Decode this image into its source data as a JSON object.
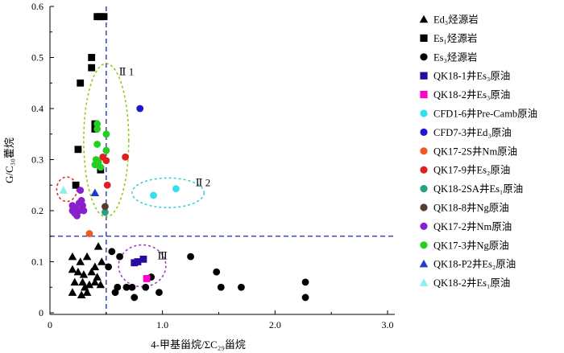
{
  "chart_data": {
    "type": "scatter",
    "xlabel": "4-甲基甾烷/ΣC₂₉甾烷",
    "ylabel": "G/C₃₀藿烷",
    "xlim": [
      0,
      3.0
    ],
    "ylim": [
      0,
      0.6
    ],
    "x_ticks": [
      "0",
      "1.0",
      "2.0",
      "3.0"
    ],
    "y_ticks": [
      "0",
      "0.1",
      "0.2",
      "0.3",
      "0.4",
      "0.5",
      "0.6"
    ],
    "reference_lines": {
      "x": 0.5,
      "y": 0.15
    },
    "legend_position": "right",
    "annotations": [
      {
        "label": "Ⅱ 1",
        "x": 0.68,
        "y": 0.465
      },
      {
        "label": "Ⅱ 2",
        "x": 1.36,
        "y": 0.248
      },
      {
        "label": "Ⅲ",
        "x": 1.0,
        "y": 0.105
      }
    ],
    "ellipses": [
      {
        "name": "II1",
        "cx": 0.5,
        "cy": 0.338,
        "rx": 0.2,
        "ry": 0.15,
        "color": "#8ccc1a"
      },
      {
        "name": "II2",
        "cx": 1.05,
        "cy": 0.235,
        "rx": 0.32,
        "ry": 0.029,
        "color": "#3cd2d2"
      },
      {
        "name": "III",
        "cx": 0.82,
        "cy": 0.092,
        "rx": 0.21,
        "ry": 0.041,
        "color": "#a83cc8"
      },
      {
        "name": "left",
        "cx": 0.15,
        "cy": 0.242,
        "rx": 0.09,
        "ry": 0.024,
        "color": "#d83030"
      }
    ],
    "series": [
      {
        "name": "Ed₃烃源岩",
        "marker": "triangle",
        "color": "#000000",
        "points": [
          [
            0.2,
            0.11
          ],
          [
            0.27,
            0.1
          ],
          [
            0.33,
            0.11
          ],
          [
            0.4,
            0.09
          ],
          [
            0.43,
            0.13
          ],
          [
            0.46,
            0.1
          ],
          [
            0.2,
            0.085
          ],
          [
            0.3,
            0.075
          ],
          [
            0.37,
            0.08
          ],
          [
            0.42,
            0.07
          ],
          [
            0.22,
            0.06
          ],
          [
            0.29,
            0.06
          ],
          [
            0.35,
            0.055
          ],
          [
            0.4,
            0.06
          ],
          [
            0.45,
            0.055
          ],
          [
            0.2,
            0.04
          ],
          [
            0.28,
            0.035
          ],
          [
            0.33,
            0.04
          ],
          [
            0.25,
            0.08
          ],
          [
            0.31,
            0.05
          ]
        ]
      },
      {
        "name": "Es₁烃源岩",
        "marker": "square",
        "color": "#000000",
        "points": [
          [
            0.42,
            0.58
          ],
          [
            0.45,
            0.58
          ],
          [
            0.48,
            0.58
          ],
          [
            0.37,
            0.5
          ],
          [
            0.37,
            0.48
          ],
          [
            0.27,
            0.45
          ],
          [
            0.4,
            0.37
          ],
          [
            0.4,
            0.36
          ],
          [
            0.25,
            0.32
          ],
          [
            0.45,
            0.28
          ],
          [
            0.23,
            0.25
          ]
        ]
      },
      {
        "name": "Es₃烃源岩",
        "marker": "circle",
        "color": "#000000",
        "points": [
          [
            0.55,
            0.12
          ],
          [
            0.62,
            0.11
          ],
          [
            0.52,
            0.09
          ],
          [
            0.6,
            0.05
          ],
          [
            0.58,
            0.04
          ],
          [
            0.68,
            0.05
          ],
          [
            0.73,
            0.05
          ],
          [
            0.75,
            0.03
          ],
          [
            0.85,
            0.05
          ],
          [
            0.9,
            0.07
          ],
          [
            0.97,
            0.04
          ],
          [
            1.25,
            0.11
          ],
          [
            1.48,
            0.08
          ],
          [
            1.52,
            0.05
          ],
          [
            1.7,
            0.05
          ],
          [
            2.27,
            0.06
          ],
          [
            2.27,
            0.03
          ]
        ]
      },
      {
        "name": "QK18-1井Es₃原油",
        "marker": "square",
        "color": "#2a0aa0",
        "points": [
          [
            0.83,
            0.105
          ],
          [
            0.78,
            0.1
          ],
          [
            0.75,
            0.098
          ]
        ]
      },
      {
        "name": "QK18-2井Es₃原油",
        "marker": "square",
        "color": "#ff00cc",
        "points": [
          [
            0.86,
            0.067
          ]
        ]
      },
      {
        "name": "CFD1-6井Pre-Camb原油",
        "marker": "circle",
        "color": "#33e0ee",
        "points": [
          [
            0.92,
            0.23
          ],
          [
            1.12,
            0.243
          ]
        ]
      },
      {
        "name": "CFD7-3井Ed₃原油",
        "marker": "circle",
        "color": "#1a1acc",
        "points": [
          [
            0.8,
            0.4
          ]
        ]
      },
      {
        "name": "QK17-2S井Nm原油",
        "marker": "circle",
        "color": "#ee5a20",
        "points": [
          [
            0.35,
            0.155
          ]
        ]
      },
      {
        "name": "QK17-9井Es₂原油",
        "marker": "circle",
        "color": "#e02020",
        "points": [
          [
            0.47,
            0.305
          ],
          [
            0.5,
            0.298
          ],
          [
            0.67,
            0.305
          ],
          [
            0.51,
            0.25
          ]
        ]
      },
      {
        "name": "QK18-2SA井Es₁原油",
        "marker": "circle",
        "color": "#26a080",
        "points": [
          [
            0.49,
            0.197
          ]
        ]
      },
      {
        "name": "QK18-8井Ng原油",
        "marker": "circle",
        "color": "#5a3a2a",
        "points": [
          [
            0.49,
            0.208
          ]
        ]
      },
      {
        "name": "QK17-2井Nm原油",
        "marker": "circle",
        "color": "#8a20cc",
        "points": [
          [
            0.2,
            0.21
          ],
          [
            0.23,
            0.205
          ],
          [
            0.26,
            0.2
          ],
          [
            0.29,
            0.21
          ],
          [
            0.22,
            0.195
          ],
          [
            0.26,
            0.215
          ],
          [
            0.3,
            0.2
          ],
          [
            0.2,
            0.2
          ],
          [
            0.24,
            0.19
          ],
          [
            0.28,
            0.22
          ],
          [
            0.27,
            0.24
          ]
        ]
      },
      {
        "name": "QK17-3井Ng原油",
        "marker": "circle",
        "color": "#22d022",
        "points": [
          [
            0.42,
            0.37
          ],
          [
            0.42,
            0.36
          ],
          [
            0.5,
            0.35
          ],
          [
            0.42,
            0.33
          ],
          [
            0.5,
            0.318
          ],
          [
            0.43,
            0.295
          ],
          [
            0.4,
            0.29
          ],
          [
            0.45,
            0.285
          ],
          [
            0.41,
            0.3
          ]
        ]
      },
      {
        "name": "QK18-P2井Es₂原油",
        "marker": "triangle",
        "color": "#1a3ec8",
        "points": [
          [
            0.4,
            0.235
          ]
        ]
      },
      {
        "name": "QK18-2井Es₁原油",
        "marker": "triangle",
        "color": "#8cf0f0",
        "points": [
          [
            0.12,
            0.24
          ]
        ]
      }
    ]
  }
}
